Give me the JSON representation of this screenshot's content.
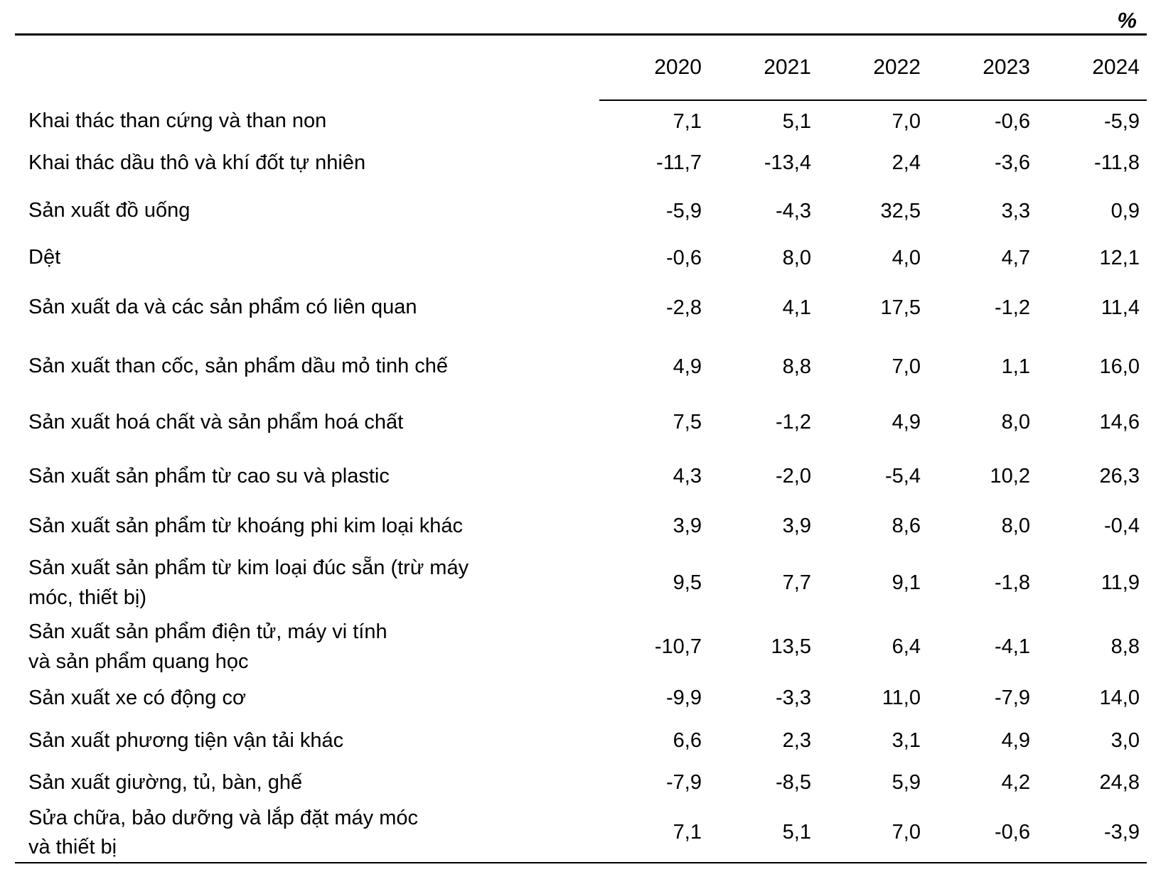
{
  "unit_label": "%",
  "table": {
    "year_headers": [
      "2020",
      "2021",
      "2022",
      "2023",
      "2024"
    ],
    "rows": [
      {
        "label": "Khai thác than cứng và than non",
        "values": [
          "7,1",
          "5,1",
          "7,0",
          "-0,6",
          "-5,9"
        ]
      },
      {
        "label": "Khai thác dầu thô và khí đốt tự nhiên",
        "values": [
          "-11,7",
          "-13,4",
          "2,4",
          "-3,6",
          "-11,8"
        ]
      },
      {
        "label": "Sản xuất đồ uống",
        "values": [
          "-5,9",
          "-4,3",
          "32,5",
          "3,3",
          "0,9"
        ]
      },
      {
        "label": "Dệt",
        "values": [
          "-0,6",
          "8,0",
          "4,0",
          "4,7",
          "12,1"
        ]
      },
      {
        "label": "Sản xuất da và các sản phẩm có liên quan",
        "values": [
          "-2,8",
          "4,1",
          "17,5",
          "-1,2",
          "11,4"
        ]
      },
      {
        "label": "Sản xuất than cốc, sản phẩm dầu mỏ tinh chế",
        "values": [
          "4,9",
          "8,8",
          "7,0",
          "1,1",
          "16,0"
        ]
      },
      {
        "label": "Sản xuất hoá chất và sản phẩm hoá chất",
        "values": [
          "7,5",
          "-1,2",
          "4,9",
          "8,0",
          "14,6"
        ]
      },
      {
        "label": "Sản xuất sản phẩm từ cao su và plastic",
        "values": [
          "4,3",
          "-2,0",
          "-5,4",
          "10,2",
          "26,3"
        ]
      },
      {
        "label": "Sản xuất sản phẩm từ khoáng phi kim loại khác",
        "values": [
          "3,9",
          "3,9",
          "8,6",
          "8,0",
          "-0,4"
        ]
      },
      {
        "label": "Sản xuất sản phẩm từ kim loại đúc sẵn (trừ máy\nmóc, thiết bị)",
        "values": [
          "9,5",
          "7,7",
          "9,1",
          "-1,8",
          "11,9"
        ]
      },
      {
        "label": "Sản xuất sản phẩm điện tử, máy vi tính\nvà sản phẩm quang học",
        "values": [
          "-10,7",
          "13,5",
          "6,4",
          "-4,1",
          "8,8"
        ]
      },
      {
        "label": "Sản xuất xe có động cơ",
        "values": [
          "-9,9",
          "-3,3",
          "11,0",
          "-7,9",
          "14,0"
        ]
      },
      {
        "label": "Sản xuất phương tiện vận tải khác",
        "values": [
          "6,6",
          "2,3",
          "3,1",
          "4,9",
          "3,0"
        ]
      },
      {
        "label": "Sản xuất giường, tủ, bàn, ghế",
        "values": [
          "-7,9",
          "-8,5",
          "5,9",
          "4,2",
          "24,8"
        ]
      },
      {
        "label": "Sửa chữa, bảo dưỡng và lắp đặt máy móc\nvà thiết bị",
        "values": [
          "7,1",
          "5,1",
          "7,0",
          "-0,6",
          "-3,9"
        ]
      }
    ]
  },
  "chart_data": {
    "type": "table",
    "title": "",
    "unit": "%",
    "categories": [
      "2020",
      "2021",
      "2022",
      "2023",
      "2024"
    ],
    "series": [
      {
        "name": "Khai thác than cứng và than non",
        "values": [
          7.1,
          5.1,
          7.0,
          -0.6,
          -5.9
        ]
      },
      {
        "name": "Khai thác dầu thô và khí đốt tự nhiên",
        "values": [
          -11.7,
          -13.4,
          2.4,
          -3.6,
          -11.8
        ]
      },
      {
        "name": "Sản xuất đồ uống",
        "values": [
          -5.9,
          -4.3,
          32.5,
          3.3,
          0.9
        ]
      },
      {
        "name": "Dệt",
        "values": [
          -0.6,
          8.0,
          4.0,
          4.7,
          12.1
        ]
      },
      {
        "name": "Sản xuất da và các sản phẩm có liên quan",
        "values": [
          -2.8,
          4.1,
          17.5,
          -1.2,
          11.4
        ]
      },
      {
        "name": "Sản xuất than cốc, sản phẩm dầu mỏ tinh chế",
        "values": [
          4.9,
          8.8,
          7.0,
          1.1,
          16.0
        ]
      },
      {
        "name": "Sản xuất hoá chất và sản phẩm hoá chất",
        "values": [
          7.5,
          -1.2,
          4.9,
          8.0,
          14.6
        ]
      },
      {
        "name": "Sản xuất sản phẩm từ cao su và plastic",
        "values": [
          4.3,
          -2.0,
          -5.4,
          10.2,
          26.3
        ]
      },
      {
        "name": "Sản xuất sản phẩm từ khoáng phi kim loại khác",
        "values": [
          3.9,
          3.9,
          8.6,
          8.0,
          -0.4
        ]
      },
      {
        "name": "Sản xuất sản phẩm từ kim loại đúc sẵn (trừ máy móc, thiết bị)",
        "values": [
          9.5,
          7.7,
          9.1,
          -1.8,
          11.9
        ]
      },
      {
        "name": "Sản xuất sản phẩm điện tử, máy vi tính và sản phẩm quang học",
        "values": [
          -10.7,
          13.5,
          6.4,
          -4.1,
          8.8
        ]
      },
      {
        "name": "Sản xuất xe có động cơ",
        "values": [
          -9.9,
          -3.3,
          11.0,
          -7.9,
          14.0
        ]
      },
      {
        "name": "Sản xuất phương tiện vận tải khác",
        "values": [
          6.6,
          2.3,
          3.1,
          4.9,
          3.0
        ]
      },
      {
        "name": "Sản xuất giường, tủ, bàn, ghế",
        "values": [
          -7.9,
          -8.5,
          5.9,
          4.2,
          24.8
        ]
      },
      {
        "name": "Sửa chữa, bảo dưỡng và lắp đặt máy móc và thiết bị",
        "values": [
          7.1,
          5.1,
          7.0,
          -0.6,
          -3.9
        ]
      }
    ]
  }
}
